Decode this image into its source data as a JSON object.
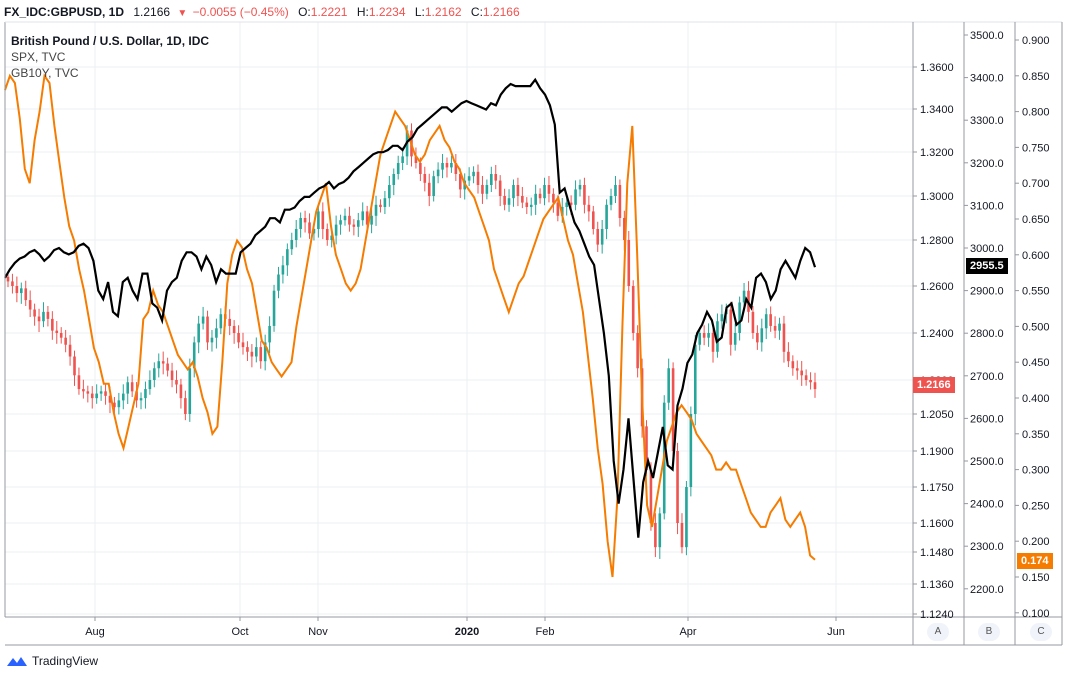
{
  "header": {
    "symbol": "FX_IDC:GBPUSD, 1D",
    "last": "1.2166",
    "change": "−0.0055 (−0.45%)",
    "o_label": "O:",
    "o_value": "1.2221",
    "h_label": "H:",
    "h_value": "1.2234",
    "l_label": "L:",
    "l_value": "1.2162",
    "c_label": "C:",
    "c_value": "1.2166"
  },
  "legend": {
    "main": "British Pound / U.S. Dollar, 1D, IDC",
    "spx": "SPX, TVC",
    "gb10y": "GB10Y, TVC"
  },
  "scale_buttons": [
    "A",
    "B",
    "C"
  ],
  "brand": "TradingView",
  "price_tags": {
    "gbpusd": "1.2166",
    "spx": "2955.5",
    "gb10y": "0.174"
  },
  "colors": {
    "up": "#26a69a",
    "down": "#ef5350",
    "spx": "#000000",
    "gb10y": "#f57c00",
    "grid": "#eceff2"
  },
  "chart_data": {
    "type": "line",
    "x_ticks": [
      "Aug",
      "Oct",
      "Nov",
      "2020",
      "Feb",
      "Apr",
      "Jun"
    ],
    "axes": {
      "gbpusd": {
        "ticks": [
          "1.3600",
          "1.3400",
          "1.3200",
          "1.3000",
          "1.2800",
          "1.2600",
          "1.2400",
          "1.2200",
          "1.2050",
          "1.1900",
          "1.1750",
          "1.1600",
          "1.1480",
          "1.1360",
          "1.1240"
        ]
      },
      "spx": {
        "ticks": [
          "3500.0",
          "3400.0",
          "3300.0",
          "3200.0",
          "3100.0",
          "3000.0",
          "2900.0",
          "2800.0",
          "2700.0",
          "2600.0",
          "2500.0",
          "2400.0",
          "2300.0",
          "2200.0"
        ],
        "range": [
          2200,
          3500
        ]
      },
      "gb10y": {
        "ticks": [
          "0.900",
          "0.850",
          "0.800",
          "0.750",
          "0.700",
          "0.650",
          "0.600",
          "0.550",
          "0.500",
          "0.450",
          "0.400",
          "0.350",
          "0.300",
          "0.250",
          "0.200",
          "0.150",
          "0.100"
        ],
        "range": [
          0.1,
          0.9
        ]
      }
    },
    "series": [
      {
        "name": "GBPUSD",
        "kind": "candles",
        "close": [
          1.262,
          1.26,
          1.257,
          1.259,
          1.254,
          1.25,
          1.247,
          1.245,
          1.249,
          1.246,
          1.241,
          1.24,
          1.238,
          1.235,
          1.23,
          1.222,
          1.216,
          1.215,
          1.214,
          1.212,
          1.214,
          1.215,
          1.213,
          1.21,
          1.208,
          1.211,
          1.214,
          1.219,
          1.215,
          1.211,
          1.212,
          1.216,
          1.22,
          1.225,
          1.228,
          1.227,
          1.224,
          1.22,
          1.218,
          1.212,
          1.205,
          1.225,
          1.236,
          1.244,
          1.247,
          1.236,
          1.238,
          1.242,
          1.248,
          1.246,
          1.243,
          1.24,
          1.236,
          1.234,
          1.232,
          1.23,
          1.234,
          1.228,
          1.236,
          1.243,
          1.258,
          1.265,
          1.269,
          1.276,
          1.28,
          1.285,
          1.29,
          1.288,
          1.283,
          1.285,
          1.293,
          1.285,
          1.28,
          1.282,
          1.287,
          1.289,
          1.291,
          1.287,
          1.286,
          1.289,
          1.293,
          1.287,
          1.291,
          1.296,
          1.295,
          1.299,
          1.305,
          1.31,
          1.315,
          1.318,
          1.33,
          1.318,
          1.315,
          1.31,
          1.306,
          1.3,
          1.309,
          1.312,
          1.315,
          1.313,
          1.315,
          1.31,
          1.303,
          1.307,
          1.309,
          1.311,
          1.305,
          1.301,
          1.305,
          1.31,
          1.307,
          1.3,
          1.296,
          1.299,
          1.305,
          1.3,
          1.297,
          1.295,
          1.296,
          1.301,
          1.299,
          1.305,
          1.301,
          1.297,
          1.291,
          1.295,
          1.297,
          1.296,
          1.303,
          1.305,
          1.296,
          1.293,
          1.285,
          1.278,
          1.285,
          1.296,
          1.3,
          1.305,
          1.29,
          1.28,
          1.26,
          1.24,
          1.225,
          1.2,
          1.182,
          1.16,
          1.15,
          1.164,
          1.21,
          1.225,
          1.19,
          1.16,
          1.15,
          1.175,
          1.205,
          1.235,
          1.24,
          1.238,
          1.24,
          1.232,
          1.245,
          1.248,
          1.25,
          1.235,
          1.24,
          1.253,
          1.258,
          1.249,
          1.24,
          1.236,
          1.242,
          1.248,
          1.243,
          1.241,
          1.244,
          1.232,
          1.228,
          1.225,
          1.224,
          1.222,
          1.22,
          1.219,
          1.216
        ]
      },
      {
        "name": "SPX",
        "kind": "line",
        "values": [
          2930,
          2950,
          2965,
          2975,
          2980,
          2990,
          2995,
          2985,
          2970,
          2980,
          2995,
          3000,
          2990,
          2985,
          2990,
          3005,
          3010,
          3000,
          2970,
          2900,
          2880,
          2920,
          2850,
          2840,
          2920,
          2930,
          2900,
          2880,
          2940,
          2940,
          2870,
          2860,
          2830,
          2900,
          2920,
          2930,
          2970,
          2990,
          2990,
          2980,
          2950,
          2980,
          2960,
          2920,
          2950,
          2940,
          2940,
          2940,
          2990,
          3000,
          3010,
          3030,
          3040,
          3050,
          3070,
          3070,
          3060,
          3090,
          3090,
          3095,
          3110,
          3120,
          3120,
          3130,
          3140,
          3145,
          3155,
          3140,
          3150,
          3155,
          3165,
          3180,
          3190,
          3200,
          3210,
          3220,
          3225,
          3225,
          3230,
          3240,
          3240,
          3230,
          3250,
          3260,
          3280,
          3290,
          3300,
          3310,
          3320,
          3330,
          3330,
          3320,
          3330,
          3340,
          3345,
          3340,
          3335,
          3330,
          3325,
          3340,
          3335,
          3360,
          3375,
          3385,
          3380,
          3380,
          3380,
          3380,
          3395,
          3375,
          3360,
          3335,
          3290,
          3130,
          3140,
          3100,
          3060,
          3040,
          3010,
          2980,
          2960,
          2880,
          2800,
          2700,
          2500,
          2400,
          2480,
          2600,
          2460,
          2320,
          2450,
          2500,
          2460,
          2520,
          2580,
          2490,
          2480,
          2630,
          2670,
          2730,
          2750,
          2800,
          2820,
          2850,
          2830,
          2780,
          2790,
          2860,
          2870,
          2820,
          2830,
          2880,
          2860,
          2930,
          2940,
          2920,
          2880,
          2900,
          2950,
          2970,
          2950,
          2930,
          2970,
          3000,
          2990,
          2955
        ]
      },
      {
        "name": "GB10Y",
        "kind": "line",
        "values": [
          0.83,
          0.85,
          0.84,
          0.79,
          0.72,
          0.7,
          0.76,
          0.8,
          0.85,
          0.84,
          0.78,
          0.73,
          0.68,
          0.64,
          0.62,
          0.58,
          0.55,
          0.51,
          0.47,
          0.45,
          0.42,
          0.42,
          0.38,
          0.35,
          0.33,
          0.36,
          0.39,
          0.42,
          0.51,
          0.52,
          0.55,
          0.53,
          0.52,
          0.5,
          0.48,
          0.46,
          0.45,
          0.44,
          0.45,
          0.43,
          0.4,
          0.38,
          0.35,
          0.36,
          0.45,
          0.56,
          0.6,
          0.62,
          0.61,
          0.58,
          0.56,
          0.52,
          0.48,
          0.47,
          0.45,
          0.44,
          0.43,
          0.44,
          0.45,
          0.5,
          0.54,
          0.58,
          0.62,
          0.66,
          0.68,
          0.7,
          0.64,
          0.6,
          0.58,
          0.56,
          0.55,
          0.56,
          0.58,
          0.62,
          0.66,
          0.7,
          0.74,
          0.76,
          0.78,
          0.8,
          0.79,
          0.78,
          0.76,
          0.74,
          0.73,
          0.74,
          0.76,
          0.77,
          0.78,
          0.76,
          0.75,
          0.73,
          0.72,
          0.7,
          0.69,
          0.68,
          0.66,
          0.64,
          0.62,
          0.58,
          0.56,
          0.54,
          0.52,
          0.54,
          0.56,
          0.57,
          0.59,
          0.61,
          0.63,
          0.65,
          0.66,
          0.67,
          0.68,
          0.65,
          0.62,
          0.6,
          0.56,
          0.52,
          0.46,
          0.4,
          0.33,
          0.28,
          0.2,
          0.15,
          0.26,
          0.5,
          0.7,
          0.78,
          0.6,
          0.4,
          0.25,
          0.22,
          0.26,
          0.3,
          0.34,
          0.36,
          0.38,
          0.39,
          0.38,
          0.37,
          0.35,
          0.34,
          0.33,
          0.32,
          0.3,
          0.3,
          0.31,
          0.3,
          0.3,
          0.28,
          0.26,
          0.24,
          0.23,
          0.22,
          0.22,
          0.24,
          0.25,
          0.26,
          0.23,
          0.22,
          0.23,
          0.24,
          0.22,
          0.18,
          0.174
        ]
      }
    ]
  }
}
